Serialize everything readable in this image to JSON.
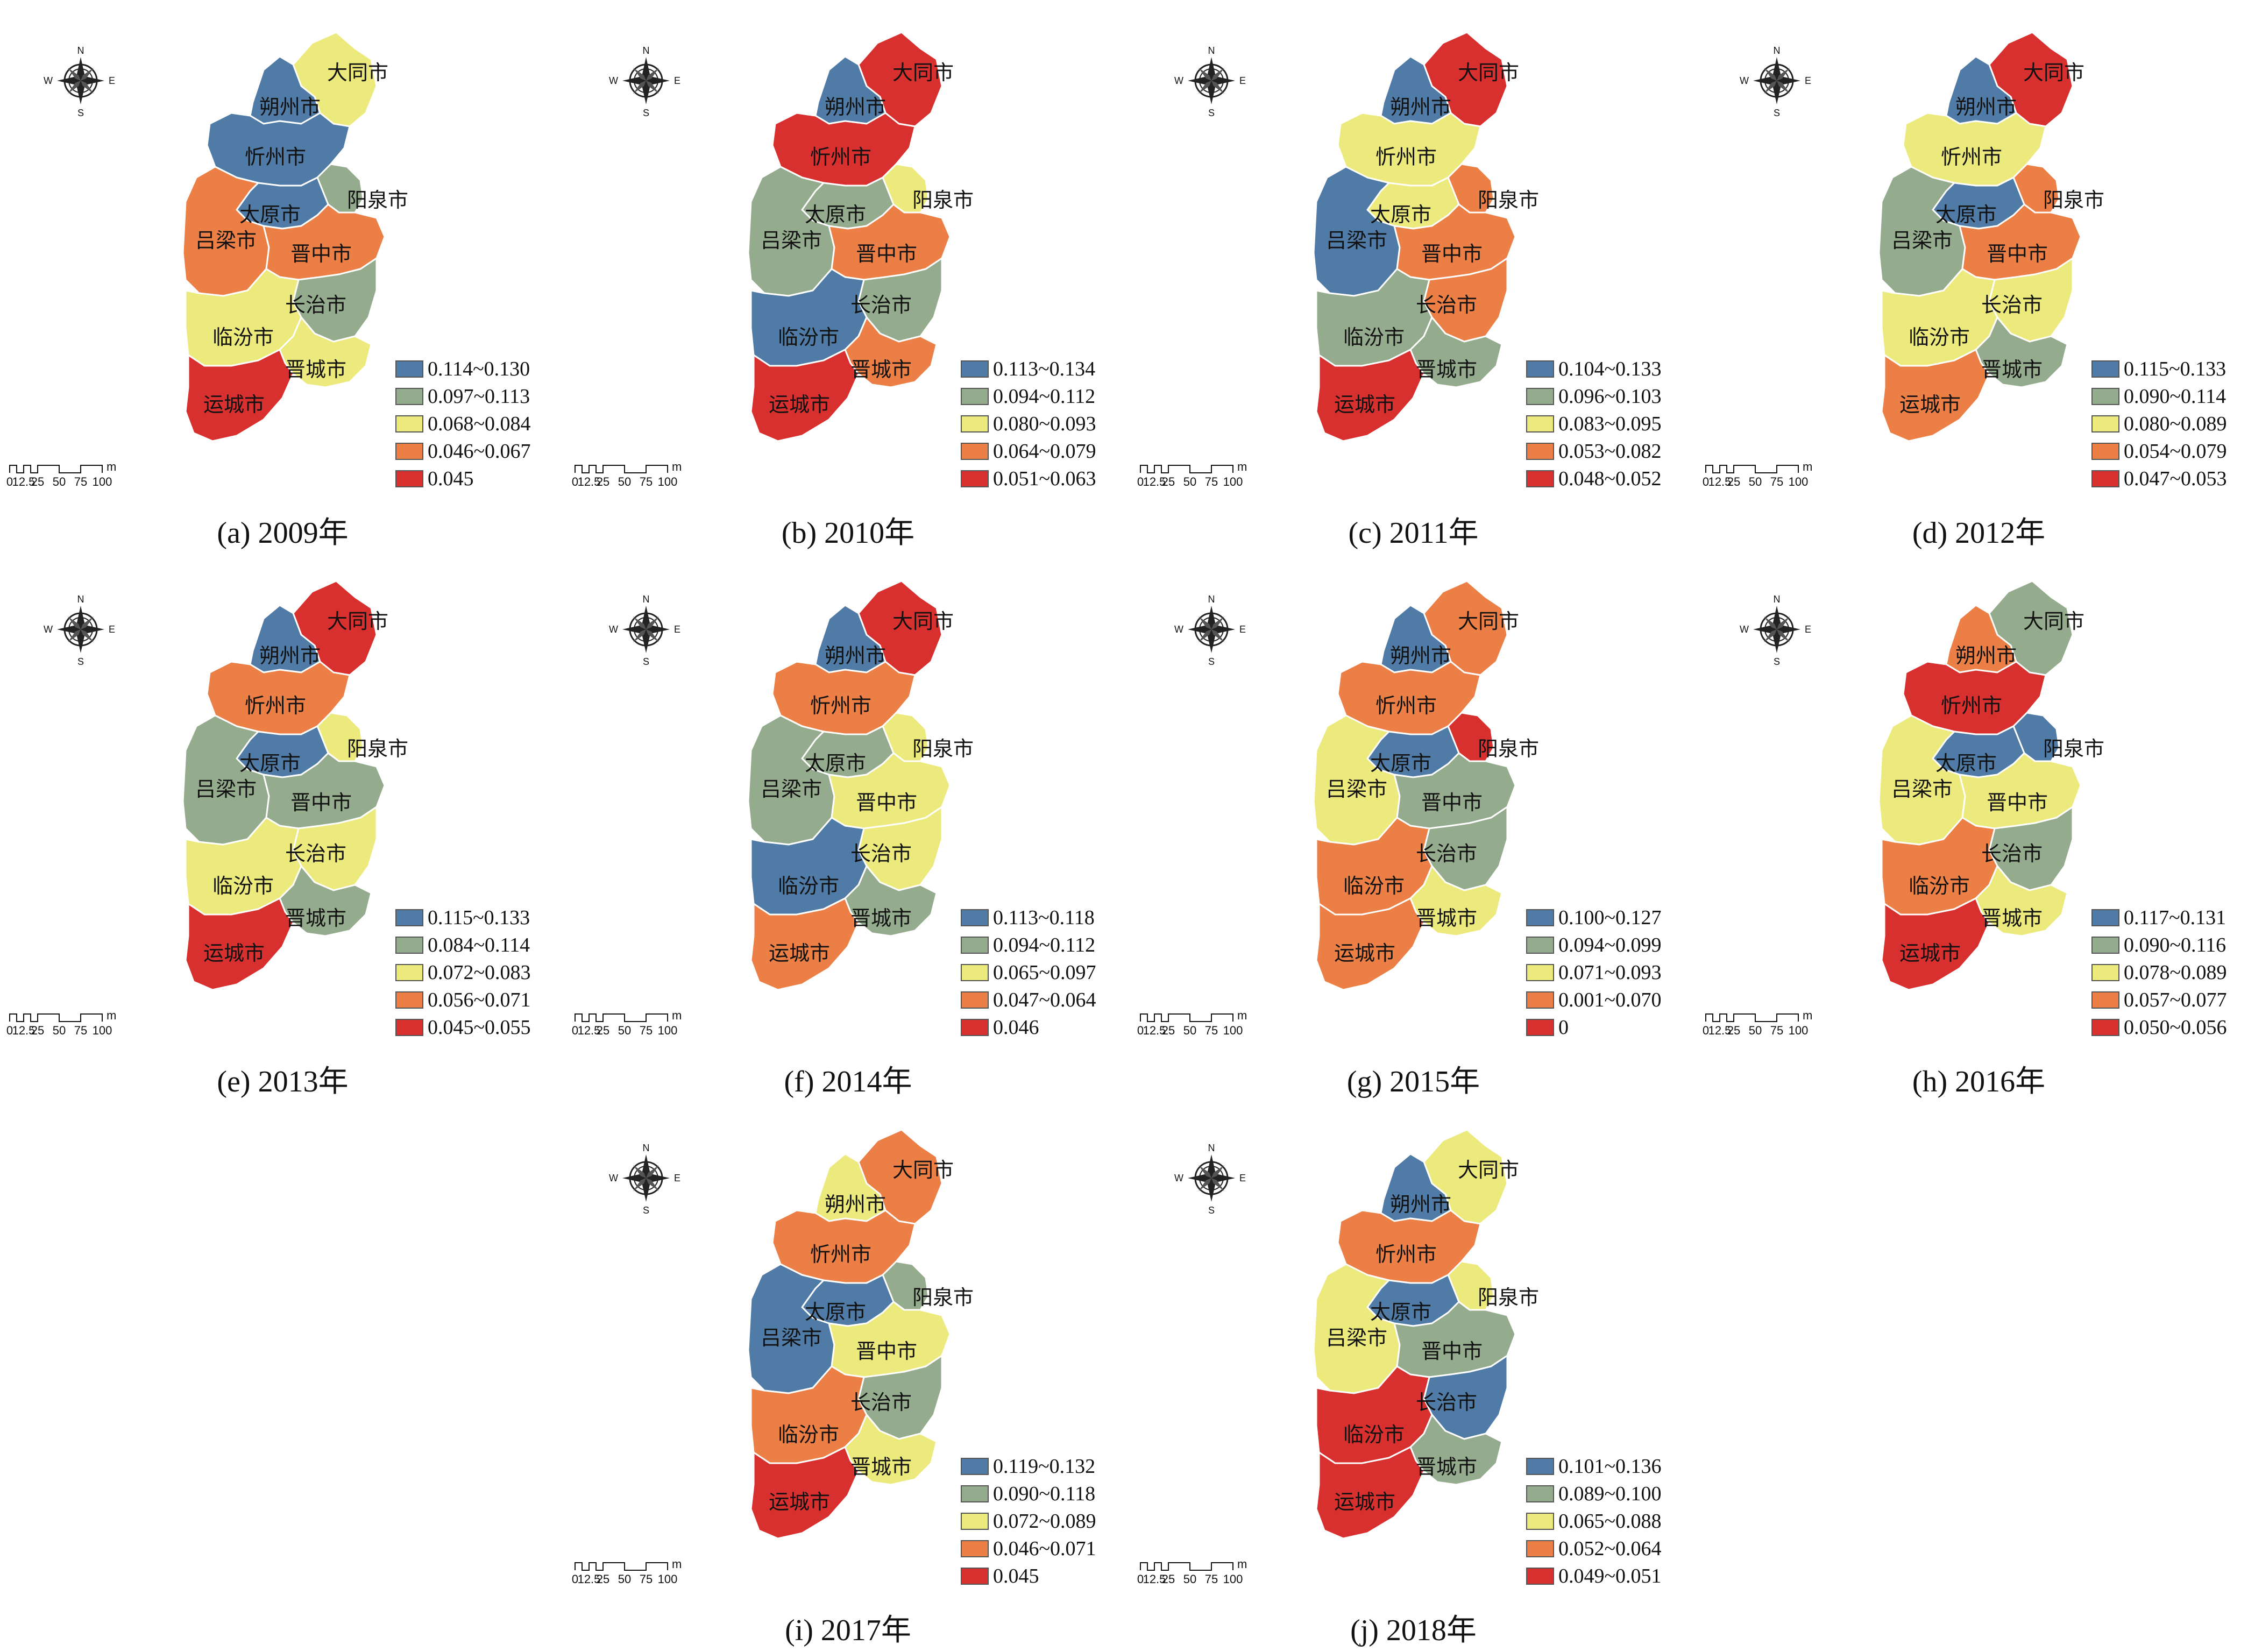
{
  "colors": {
    "c1": "#4f7ba6",
    "c2": "#95ab8d",
    "c3": "#ecea7c",
    "c4": "#ec7f45",
    "c5": "#d8302f"
  },
  "cities": [
    "大同市",
    "朔州市",
    "忻州市",
    "阳泉市",
    "太原市",
    "吕梁市",
    "晋中市",
    "长治市",
    "临汾市",
    "晋城市",
    "运城市"
  ],
  "compass": {
    "n": "N",
    "s": "S",
    "e": "E",
    "w": "W"
  },
  "scale": {
    "labels": [
      "0",
      "12.5",
      "25",
      "50",
      "75",
      "100"
    ],
    "unit": "m"
  },
  "panels": [
    {
      "caption": "(a) 2009年",
      "legend": [
        "0.114~0.130",
        "0.097~0.113",
        "0.068~0.084",
        "0.046~0.067",
        "0.045"
      ],
      "fills": {
        "大同市": "c3",
        "朔州市": "c1",
        "忻州市": "c1",
        "阳泉市": "c2",
        "太原市": "c1",
        "吕梁市": "c4",
        "晋中市": "c4",
        "长治市": "c2",
        "临汾市": "c3",
        "晋城市": "c3",
        "运城市": "c5"
      }
    },
    {
      "caption": "(b) 2010年",
      "legend": [
        "0.113~0.134",
        "0.094~0.112",
        "0.080~0.093",
        "0.064~0.079",
        "0.051~0.063"
      ],
      "fills": {
        "大同市": "c5",
        "朔州市": "c1",
        "忻州市": "c5",
        "阳泉市": "c3",
        "太原市": "c2",
        "吕梁市": "c2",
        "晋中市": "c4",
        "长治市": "c2",
        "临汾市": "c1",
        "晋城市": "c4",
        "运城市": "c5"
      }
    },
    {
      "caption": "(c) 2011年",
      "legend": [
        "0.104~0.133",
        "0.096~0.103",
        "0.083~0.095",
        "0.053~0.082",
        "0.048~0.052"
      ],
      "fills": {
        "大同市": "c5",
        "朔州市": "c1",
        "忻州市": "c3",
        "阳泉市": "c4",
        "太原市": "c3",
        "吕梁市": "c1",
        "晋中市": "c4",
        "长治市": "c4",
        "临汾市": "c2",
        "晋城市": "c2",
        "运城市": "c5"
      }
    },
    {
      "caption": "(d) 2012年",
      "legend": [
        "0.115~0.133",
        "0.090~0.114",
        "0.080~0.089",
        "0.054~0.079",
        "0.047~0.053"
      ],
      "fills": {
        "大同市": "c5",
        "朔州市": "c1",
        "忻州市": "c3",
        "阳泉市": "c4",
        "太原市": "c1",
        "吕梁市": "c2",
        "晋中市": "c4",
        "长治市": "c3",
        "临汾市": "c3",
        "晋城市": "c2",
        "运城市": "c4"
      }
    },
    {
      "caption": "(e) 2013年",
      "legend": [
        "0.115~0.133",
        "0.084~0.114",
        "0.072~0.083",
        "0.056~0.071",
        "0.045~0.055"
      ],
      "fills": {
        "大同市": "c5",
        "朔州市": "c1",
        "忻州市": "c4",
        "阳泉市": "c3",
        "太原市": "c1",
        "吕梁市": "c2",
        "晋中市": "c2",
        "长治市": "c3",
        "临汾市": "c3",
        "晋城市": "c2",
        "运城市": "c5"
      }
    },
    {
      "caption": "(f) 2014年",
      "legend": [
        "0.113~0.118",
        "0.094~0.112",
        "0.065~0.097",
        "0.047~0.064",
        "0.046"
      ],
      "fills": {
        "大同市": "c5",
        "朔州市": "c1",
        "忻州市": "c4",
        "阳泉市": "c3",
        "太原市": "c2",
        "吕梁市": "c2",
        "晋中市": "c3",
        "长治市": "c3",
        "临汾市": "c1",
        "晋城市": "c2",
        "运城市": "c4"
      }
    },
    {
      "caption": "(g) 2015年",
      "legend": [
        "0.100~0.127",
        "0.094~0.099",
        "0.071~0.093",
        "0.001~0.070",
        "0"
      ],
      "fills": {
        "大同市": "c4",
        "朔州市": "c1",
        "忻州市": "c4",
        "阳泉市": "c5",
        "太原市": "c1",
        "吕梁市": "c3",
        "晋中市": "c2",
        "长治市": "c2",
        "临汾市": "c4",
        "晋城市": "c3",
        "运城市": "c4"
      }
    },
    {
      "caption": "(h) 2016年",
      "legend": [
        "0.117~0.131",
        "0.090~0.116",
        "0.078~0.089",
        "0.057~0.077",
        "0.050~0.056"
      ],
      "fills": {
        "大同市": "c2",
        "朔州市": "c4",
        "忻州市": "c5",
        "阳泉市": "c1",
        "太原市": "c1",
        "吕梁市": "c3",
        "晋中市": "c3",
        "长治市": "c2",
        "临汾市": "c4",
        "晋城市": "c3",
        "运城市": "c5"
      }
    },
    {
      "caption": "(i) 2017年",
      "legend": [
        "0.119~0.132",
        "0.090~0.118",
        "0.072~0.089",
        "0.046~0.071",
        "0.045"
      ],
      "fills": {
        "大同市": "c4",
        "朔州市": "c3",
        "忻州市": "c4",
        "阳泉市": "c2",
        "太原市": "c1",
        "吕梁市": "c1",
        "晋中市": "c3",
        "长治市": "c2",
        "临汾市": "c4",
        "晋城市": "c3",
        "运城市": "c5"
      }
    },
    {
      "caption": "(j) 2018年",
      "legend": [
        "0.101~0.136",
        "0.089~0.100",
        "0.065~0.088",
        "0.052~0.064",
        "0.049~0.051"
      ],
      "fills": {
        "大同市": "c3",
        "朔州市": "c1",
        "忻州市": "c4",
        "阳泉市": "c3",
        "太原市": "c1",
        "吕梁市": "c3",
        "晋中市": "c2",
        "长治市": "c1",
        "临汾市": "c5",
        "晋城市": "c2",
        "运城市": "c5"
      }
    }
  ]
}
